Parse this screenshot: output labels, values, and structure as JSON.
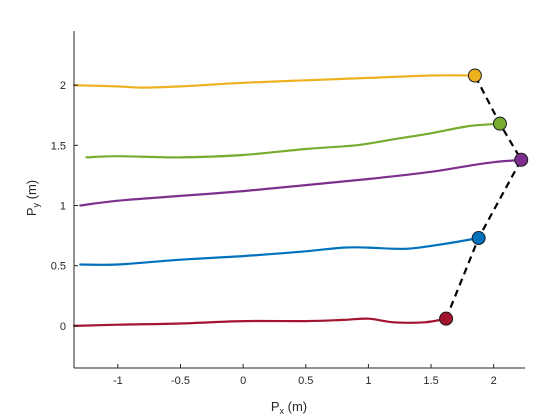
{
  "chart_data": {
    "type": "line",
    "xlabel": {
      "main": "P",
      "sub": "x",
      "unit": " (m)"
    },
    "ylabel": {
      "main": "P",
      "sub": "y",
      "unit": " (m)"
    },
    "xlim": [
      -1.35,
      2.25
    ],
    "ylim": [
      -0.35,
      2.45
    ],
    "xticks": [
      -1,
      -0.5,
      0,
      0.5,
      1,
      1.5,
      2
    ],
    "xtick_labels": [
      "-1",
      "-0.5",
      "0",
      "0.5",
      "1",
      "1.5",
      "2"
    ],
    "yticks": [
      0,
      0.5,
      1,
      1.5,
      2
    ],
    "ytick_labels": [
      "0",
      "0.5",
      "1",
      "1.5",
      "2"
    ],
    "grid": false,
    "legend": "none",
    "series": [
      {
        "color": "#a2142f",
        "x": [
          -1.35,
          -1.0,
          -0.5,
          0.0,
          0.5,
          0.8,
          1.0,
          1.2,
          1.45,
          1.62
        ],
        "y": [
          0.0,
          0.01,
          0.02,
          0.04,
          0.04,
          0.05,
          0.06,
          0.03,
          0.03,
          0.06
        ],
        "end": [
          1.62,
          0.06
        ]
      },
      {
        "color": "#0072bd",
        "x": [
          -1.3,
          -1.0,
          -0.5,
          0.0,
          0.5,
          0.8,
          1.0,
          1.3,
          1.6,
          1.88
        ],
        "y": [
          0.51,
          0.51,
          0.55,
          0.58,
          0.62,
          0.65,
          0.65,
          0.64,
          0.68,
          0.73
        ],
        "end": [
          1.88,
          0.73
        ]
      },
      {
        "color": "#7e2f8e",
        "x": [
          -1.3,
          -1.0,
          -0.5,
          0.0,
          0.5,
          1.0,
          1.5,
          1.8,
          2.0,
          2.22
        ],
        "y": [
          1.0,
          1.04,
          1.08,
          1.12,
          1.17,
          1.22,
          1.28,
          1.33,
          1.36,
          1.38
        ],
        "end": [
          2.22,
          1.38
        ]
      },
      {
        "color": "#77ac30",
        "x": [
          -1.25,
          -1.0,
          -0.5,
          0.0,
          0.5,
          0.9,
          1.2,
          1.5,
          1.8,
          2.05
        ],
        "y": [
          1.4,
          1.41,
          1.4,
          1.42,
          1.47,
          1.5,
          1.55,
          1.6,
          1.66,
          1.68
        ],
        "end": [
          2.05,
          1.68
        ]
      },
      {
        "color": "#edb120",
        "x": [
          -1.35,
          -1.0,
          -0.8,
          -0.5,
          0.0,
          0.5,
          1.0,
          1.5,
          1.85
        ],
        "y": [
          2.0,
          1.99,
          1.98,
          1.99,
          2.02,
          2.04,
          2.06,
          2.08,
          2.08
        ],
        "end": [
          1.85,
          2.08
        ]
      }
    ],
    "connector": {
      "style": "dashed",
      "color": "#000000",
      "points": [
        [
          1.62,
          0.06
        ],
        [
          1.88,
          0.73
        ],
        [
          2.22,
          1.38
        ],
        [
          2.05,
          1.68
        ],
        [
          1.85,
          2.08
        ]
      ]
    }
  }
}
